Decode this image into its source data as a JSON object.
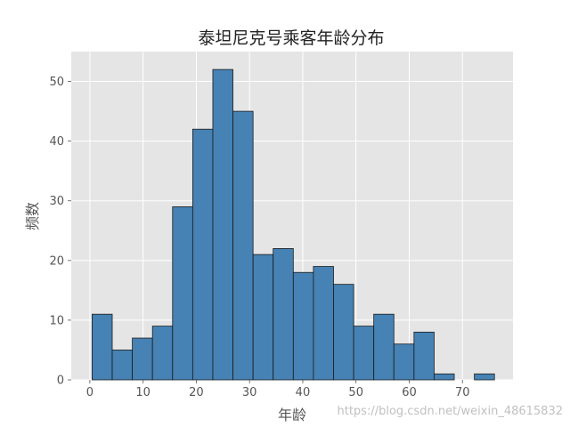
{
  "chart_data": {
    "type": "bar",
    "title": "泰坦尼克号乘客年龄分布",
    "xlabel": "年龄",
    "ylabel": "频数",
    "xlim": [
      -3.5,
      79.5
    ],
    "ylim": [
      0,
      55
    ],
    "xticks": [
      0,
      10,
      20,
      30,
      40,
      50,
      60,
      70
    ],
    "yticks": [
      0,
      10,
      20,
      30,
      40,
      50
    ],
    "bin_edges": [
      0.42,
      4.2,
      7.98,
      11.76,
      15.54,
      19.32,
      23.1,
      26.88,
      30.66,
      34.44,
      38.22,
      42.0,
      45.78,
      49.56,
      53.34,
      57.12,
      60.9,
      64.68,
      68.46,
      72.24,
      76.02
    ],
    "values": [
      11,
      5,
      7,
      9,
      29,
      42,
      52,
      45,
      21,
      22,
      18,
      19,
      16,
      9,
      11,
      6,
      8,
      1,
      0,
      1
    ],
    "grid": true,
    "colors": {
      "bar_fill": "#4682b4",
      "bar_edge": "#1a1a1a",
      "plot_bg": "#e5e5e5",
      "grid": "#ffffff"
    }
  },
  "watermark": "https://blog.csdn.net/weixin_48615832"
}
